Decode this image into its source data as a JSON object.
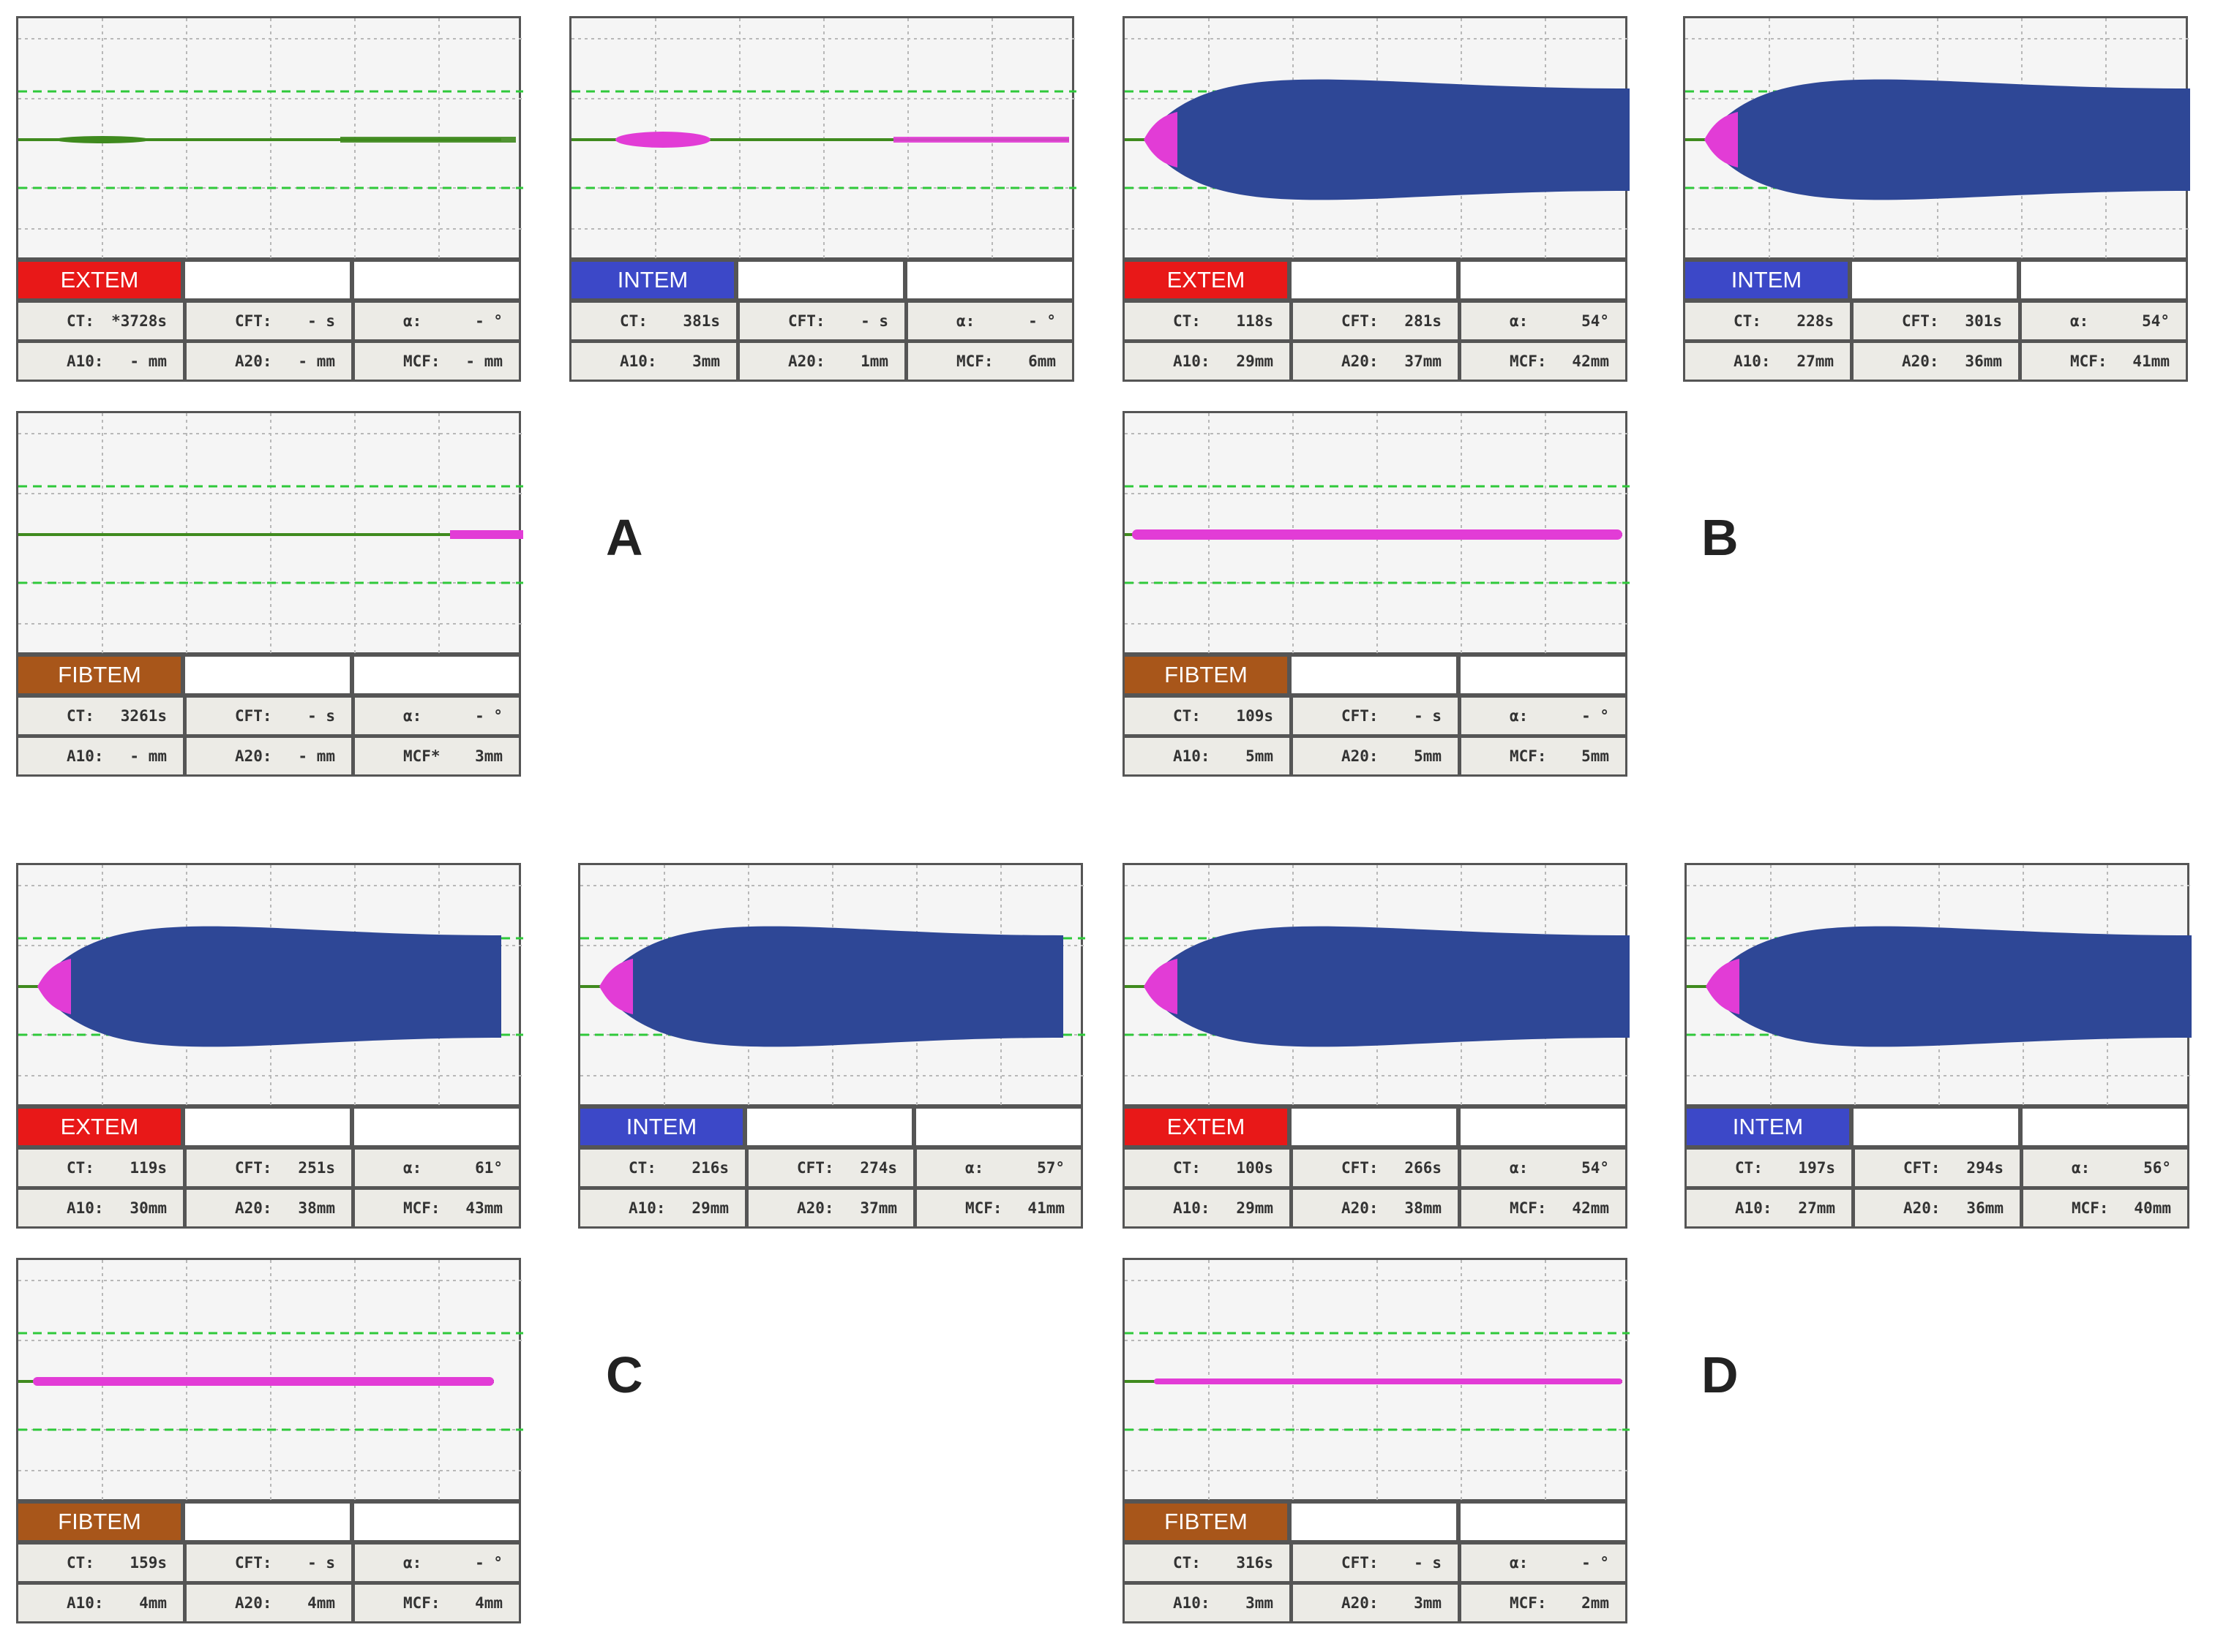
{
  "colors": {
    "EXTEM": "#e81818",
    "INTEM": "#3c48c8",
    "FIBTEM": "#a8561a",
    "clot": "#2e4796",
    "initial": "#e23cd6",
    "baseline": "#3f8a1e",
    "gridline": "#2fc93a"
  },
  "labels": {
    "ct": "CT:",
    "cft": "CFT:",
    "alpha": "α:",
    "a10": "A10:",
    "a20": "A20:",
    "mcf": "MCF:"
  },
  "groups": [
    "A",
    "B",
    "C",
    "D"
  ],
  "chart_data": [
    {
      "type": "rotem-trace",
      "group": "A",
      "assay": "EXTEM",
      "trace": "flat",
      "values": {
        "ct": "*3728s",
        "cft": "- s",
        "alpha": "- °",
        "a10": "- mm",
        "a20": "- mm",
        "mcf": "- mm"
      }
    },
    {
      "type": "rotem-trace",
      "group": "A",
      "assay": "INTEM",
      "trace": "flat",
      "values": {
        "ct": "381s",
        "cft": "- s",
        "alpha": "- °",
        "a10": "3mm",
        "a20": "1mm",
        "mcf": "6mm"
      }
    },
    {
      "type": "rotem-trace",
      "group": "A",
      "assay": "FIBTEM",
      "trace": "flat",
      "values": {
        "ct": "3261s",
        "cft": "- s",
        "alpha": "- °",
        "a10": "- mm",
        "a20": "- mm",
        "mcf": "3mm"
      },
      "mcf_label": "MCF*"
    },
    {
      "type": "rotem-trace",
      "group": "B",
      "assay": "EXTEM",
      "trace": "clot",
      "values": {
        "ct": "118s",
        "cft": "281s",
        "alpha": "54°",
        "a10": "29mm",
        "a20": "37mm",
        "mcf": "42mm"
      }
    },
    {
      "type": "rotem-trace",
      "group": "B",
      "assay": "INTEM",
      "trace": "clot",
      "values": {
        "ct": "228s",
        "cft": "301s",
        "alpha": "54°",
        "a10": "27mm",
        "a20": "36mm",
        "mcf": "41mm"
      }
    },
    {
      "type": "rotem-trace",
      "group": "B",
      "assay": "FIBTEM",
      "trace": "flat",
      "values": {
        "ct": "109s",
        "cft": "- s",
        "alpha": "- °",
        "a10": "5mm",
        "a20": "5mm",
        "mcf": "5mm"
      }
    },
    {
      "type": "rotem-trace",
      "group": "C",
      "assay": "EXTEM",
      "trace": "clot",
      "values": {
        "ct": "119s",
        "cft": "251s",
        "alpha": "61°",
        "a10": "30mm",
        "a20": "38mm",
        "mcf": "43mm"
      }
    },
    {
      "type": "rotem-trace",
      "group": "C",
      "assay": "INTEM",
      "trace": "clot",
      "values": {
        "ct": "216s",
        "cft": "274s",
        "alpha": "57°",
        "a10": "29mm",
        "a20": "37mm",
        "mcf": "41mm"
      }
    },
    {
      "type": "rotem-trace",
      "group": "C",
      "assay": "FIBTEM",
      "trace": "flat",
      "values": {
        "ct": "159s",
        "cft": "- s",
        "alpha": "- °",
        "a10": "4mm",
        "a20": "4mm",
        "mcf": "4mm"
      }
    },
    {
      "type": "rotem-trace",
      "group": "D",
      "assay": "EXTEM",
      "trace": "clot",
      "values": {
        "ct": "100s",
        "cft": "266s",
        "alpha": "54°",
        "a10": "29mm",
        "a20": "38mm",
        "mcf": "42mm"
      }
    },
    {
      "type": "rotem-trace",
      "group": "D",
      "assay": "INTEM",
      "trace": "clot",
      "values": {
        "ct": "197s",
        "cft": "294s",
        "alpha": "56°",
        "a10": "27mm",
        "a20": "36mm",
        "mcf": "40mm"
      }
    },
    {
      "type": "rotem-trace",
      "group": "D",
      "assay": "FIBTEM",
      "trace": "flat",
      "values": {
        "ct": "316s",
        "cft": "- s",
        "alpha": "- °",
        "a10": "3mm",
        "a20": "3mm",
        "mcf": "2mm"
      }
    }
  ]
}
